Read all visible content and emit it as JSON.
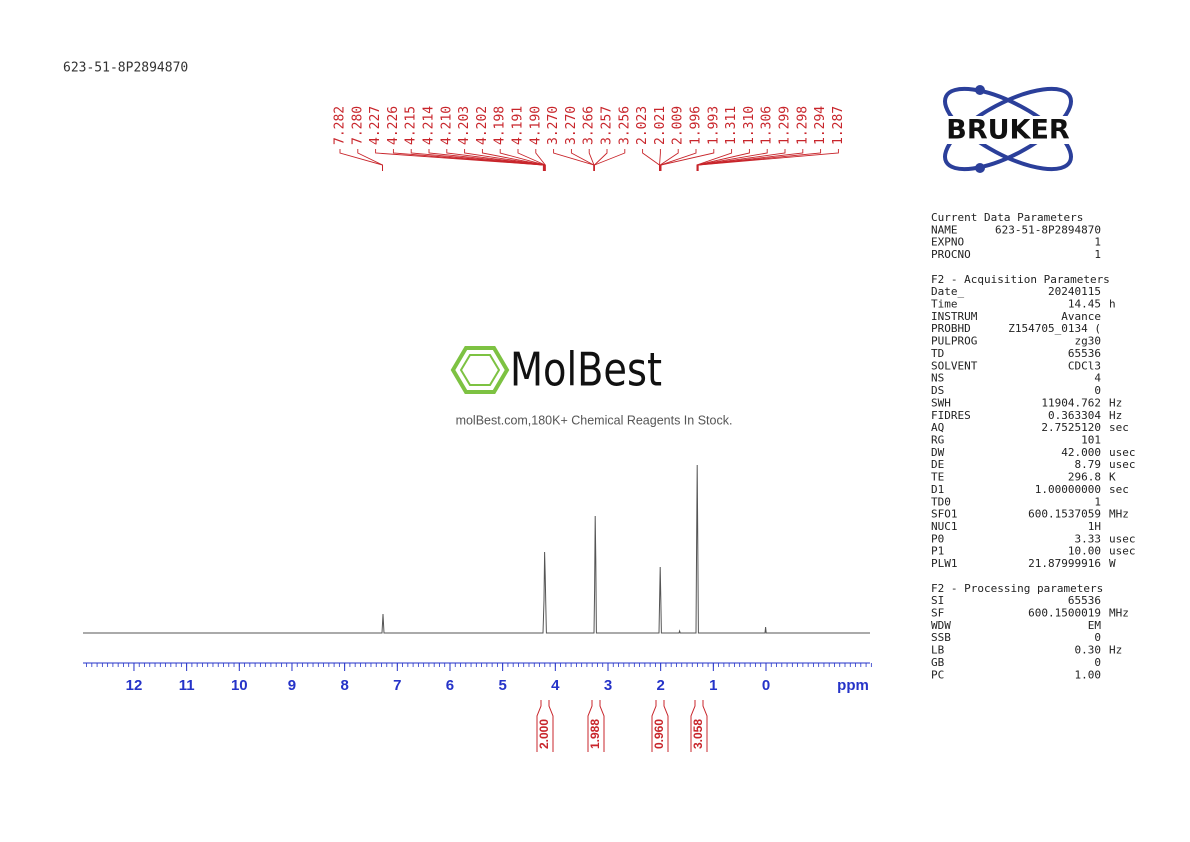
{
  "header": {
    "title": "623-51-8P2894870"
  },
  "peak_labels": [
    "7.282",
    "7.280",
    "4.227",
    "4.226",
    "4.215",
    "4.214",
    "4.210",
    "4.203",
    "4.202",
    "4.198",
    "4.191",
    "4.190",
    "3.270",
    "3.270",
    "3.266",
    "3.257",
    "3.256",
    "2.023",
    "2.021",
    "2.009",
    "1.996",
    "1.993",
    "1.311",
    "1.310",
    "1.306",
    "1.299",
    "1.298",
    "1.294",
    "1.287"
  ],
  "axis": {
    "ticks": [
      "12",
      "11",
      "10",
      "9",
      "8",
      "7",
      "6",
      "5",
      "4",
      "3",
      "2",
      "1",
      "0"
    ],
    "label": "ppm"
  },
  "integrals": [
    "2.000",
    "1.988",
    "0.960",
    "3.058"
  ],
  "watermark": {
    "name": "MolBest",
    "tagline": "molBest.com,180K+ Chemical Reagents In Stock."
  },
  "logo": {
    "text": "BRUKER"
  },
  "parameters": [
    {
      "title": "Current Data Parameters",
      "rows": [
        {
          "name": "NAME",
          "value": "623-51-8P2894870"
        },
        {
          "name": "EXPNO",
          "value": "1"
        },
        {
          "name": "PROCNO",
          "value": "1"
        }
      ]
    },
    {
      "title": "F2 - Acquisition Parameters",
      "rows": [
        {
          "name": "Date_",
          "value": "20240115"
        },
        {
          "name": "Time",
          "value": "14.45",
          "unit": "h"
        },
        {
          "name": "INSTRUM",
          "value": "Avance"
        },
        {
          "name": "PROBHD",
          "value": "Z154705_0134 ("
        },
        {
          "name": "PULPROG",
          "value": "zg30"
        },
        {
          "name": "TD",
          "value": "65536"
        },
        {
          "name": "SOLVENT",
          "value": "CDCl3"
        },
        {
          "name": "NS",
          "value": "4"
        },
        {
          "name": "DS",
          "value": "0"
        },
        {
          "name": "SWH",
          "value": "11904.762",
          "unit": "Hz"
        },
        {
          "name": "FIDRES",
          "value": "0.363304",
          "unit": "Hz"
        },
        {
          "name": "AQ",
          "value": "2.7525120",
          "unit": "sec"
        },
        {
          "name": "RG",
          "value": "101"
        },
        {
          "name": "DW",
          "value": "42.000",
          "unit": "usec"
        },
        {
          "name": "DE",
          "value": "8.79",
          "unit": "usec"
        },
        {
          "name": "TE",
          "value": "296.8",
          "unit": "K"
        },
        {
          "name": "D1",
          "value": "1.00000000",
          "unit": "sec"
        },
        {
          "name": "TD0",
          "value": "1"
        },
        {
          "name": "SFO1",
          "value": "600.1537059",
          "unit": "MHz"
        },
        {
          "name": "NUC1",
          "value": "1H"
        },
        {
          "name": "P0",
          "value": "3.33",
          "unit": "usec"
        },
        {
          "name": "P1",
          "value": "10.00",
          "unit": "usec"
        },
        {
          "name": "PLW1",
          "value": "21.87999916",
          "unit": "W"
        }
      ]
    },
    {
      "title": "F2 - Processing parameters",
      "rows": [
        {
          "name": "SI",
          "value": "65536"
        },
        {
          "name": "SF",
          "value": "600.1500019",
          "unit": "MHz"
        },
        {
          "name": "WDW",
          "value": "EM"
        },
        {
          "name": "SSB",
          "value": "0"
        },
        {
          "name": "LB",
          "value": "0.30",
          "unit": "Hz"
        },
        {
          "name": "GB",
          "value": "0"
        },
        {
          "name": "PC",
          "value": "1.00"
        }
      ]
    }
  ]
}
